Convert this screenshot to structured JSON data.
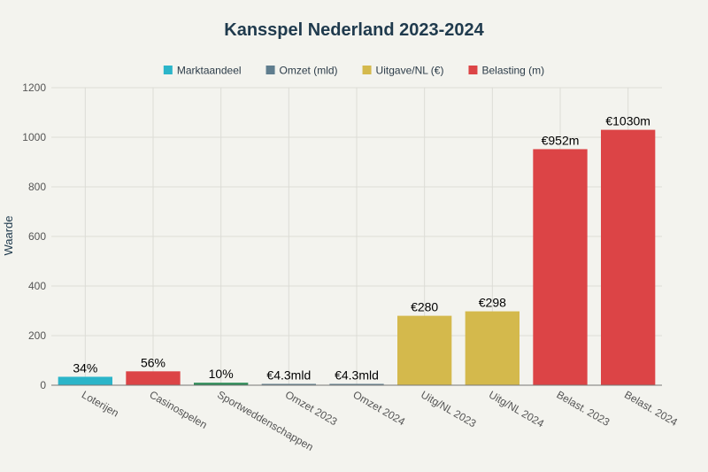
{
  "chart_data": {
    "type": "bar",
    "title": "Kansspel Nederland 2023-2024",
    "ylabel": "Waarde",
    "xlabel": "",
    "ylim": [
      0,
      1200
    ],
    "yticks": [
      0,
      200,
      400,
      600,
      800,
      1000,
      1200
    ],
    "grid": true,
    "legend_position": "top",
    "categories": [
      "Loterijen",
      "Casinospelen",
      "Sportweddenschappen",
      "Omzet 2023",
      "Omzet 2024",
      "Uitg/NL 2023",
      "Uitg/NL 2024",
      "Belast. 2023",
      "Belast. 2024"
    ],
    "series": [
      {
        "name": "Marktaandeel",
        "color": "#2bb5c9",
        "points": [
          {
            "category": "Loterijen",
            "value": 34,
            "label": "34%"
          },
          {
            "category": "Casinospelen",
            "value": 56,
            "label": "56%",
            "color": "#dc4446"
          },
          {
            "category": "Sportweddenschappen",
            "value": 10,
            "label": "10%",
            "color": "#2e8b57"
          }
        ]
      },
      {
        "name": "Omzet (mld)",
        "color": "#5f7d8e",
        "points": [
          {
            "category": "Omzet 2023",
            "value": 4.3,
            "label": "€4.3mld"
          },
          {
            "category": "Omzet 2024",
            "value": 4.3,
            "label": "€4.3mld"
          }
        ]
      },
      {
        "name": "Uitgave/NL (€)",
        "color": "#d4b94c",
        "points": [
          {
            "category": "Uitg/NL 2023",
            "value": 280,
            "label": "€280"
          },
          {
            "category": "Uitg/NL 2024",
            "value": 298,
            "label": "€298"
          }
        ]
      },
      {
        "name": "Belasting (m)",
        "color": "#dc4446",
        "points": [
          {
            "category": "Belast. 2023",
            "value": 952,
            "label": "€952m"
          },
          {
            "category": "Belast. 2024",
            "value": 1030,
            "label": "€1030m"
          }
        ]
      }
    ]
  }
}
